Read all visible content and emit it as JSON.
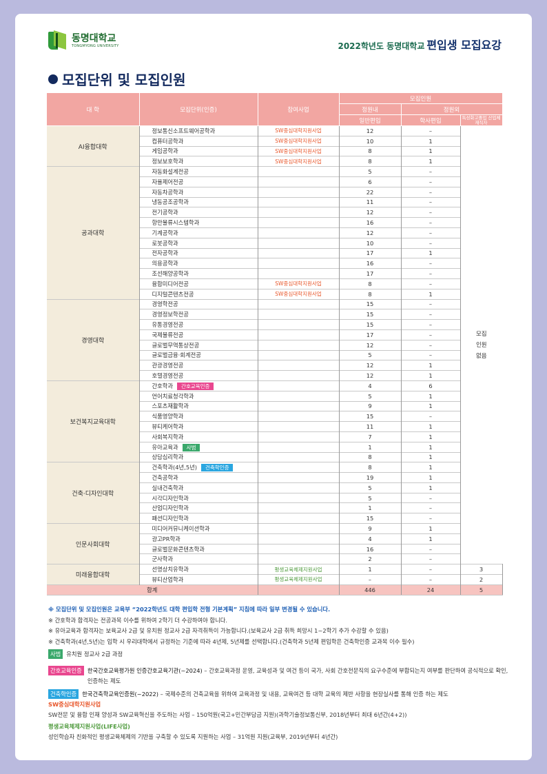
{
  "header": {
    "logo_ko": "동명대학교",
    "logo_en": "TONGMYONG UNIVERSITY",
    "doc_title_prefix": "2022학년도 동명대학교",
    "doc_title_main": "편입생 모집요강"
  },
  "section_title": "모집단위 및 모집인원",
  "colors": {
    "header_bg": "#f2a6a2",
    "college_bg": "#f3ecdc",
    "orange": "#e8562a",
    "green": "#4e9a3c",
    "badge_nursing": "#e9478f",
    "badge_teacher": "#3aa86b",
    "badge_arch": "#2aa6e0"
  },
  "table": {
    "headers": {
      "college": "대 학",
      "unit": "모집단위(인증)",
      "project": "참여사업",
      "recruit": "모집인원",
      "within": "정원내",
      "outside": "정원외",
      "general": "일반편입",
      "bachelor": "학사편입",
      "special": "특성화고졸업 산업체재직자"
    },
    "no_recruit": "모집 인원 없음",
    "colleges": [
      {
        "name": "AI융합대학",
        "programs": [
          {
            "unit": "정보통신소프트웨어공학과",
            "project": "SW중심대학지원사업",
            "general": "12",
            "bachelor": "–"
          },
          {
            "unit": "컴퓨터공학과",
            "project": "SW중심대학지원사업",
            "general": "10",
            "bachelor": "1"
          },
          {
            "unit": "게임공학과",
            "project": "SW중심대학지원사업",
            "general": "8",
            "bachelor": "1"
          },
          {
            "unit": "정보보호학과",
            "project": "SW중심대학지원사업",
            "general": "8",
            "bachelor": "1"
          }
        ]
      },
      {
        "name": "공과대학",
        "programs": [
          {
            "unit": "자동화설계전공",
            "project": "",
            "general": "5",
            "bachelor": "–"
          },
          {
            "unit": "자율제어전공",
            "project": "",
            "general": "6",
            "bachelor": "–"
          },
          {
            "unit": "자동차공학과",
            "project": "",
            "general": "22",
            "bachelor": "–"
          },
          {
            "unit": "냉동공조공학과",
            "project": "",
            "general": "11",
            "bachelor": "–"
          },
          {
            "unit": "전기공학과",
            "project": "",
            "general": "12",
            "bachelor": "–"
          },
          {
            "unit": "항만물류시스템학과",
            "project": "",
            "general": "16",
            "bachelor": "–"
          },
          {
            "unit": "기계공학과",
            "project": "",
            "general": "12",
            "bachelor": "–"
          },
          {
            "unit": "로봇공학과",
            "project": "",
            "general": "10",
            "bachelor": "–"
          },
          {
            "unit": "전자공학과",
            "project": "",
            "general": "17",
            "bachelor": "1"
          },
          {
            "unit": "의용공학과",
            "project": "",
            "general": "16",
            "bachelor": "–"
          },
          {
            "unit": "조선해양공학과",
            "project": "",
            "general": "17",
            "bachelor": "–"
          },
          {
            "unit": "융합미디어전공",
            "project": "SW중심대학지원사업",
            "general": "8",
            "bachelor": "–"
          },
          {
            "unit": "디지털콘텐츠전공",
            "project": "SW중심대학지원사업",
            "general": "8",
            "bachelor": "1"
          }
        ]
      },
      {
        "name": "경영대학",
        "programs": [
          {
            "unit": "경영학전공",
            "project": "",
            "general": "15",
            "bachelor": "–"
          },
          {
            "unit": "경영정보학전공",
            "project": "",
            "general": "15",
            "bachelor": "–"
          },
          {
            "unit": "유통경영전공",
            "project": "",
            "general": "15",
            "bachelor": "–"
          },
          {
            "unit": "국제물류전공",
            "project": "",
            "general": "17",
            "bachelor": "–"
          },
          {
            "unit": "글로벌무역통상전공",
            "project": "",
            "general": "12",
            "bachelor": "–"
          },
          {
            "unit": "글로벌금융·회계전공",
            "project": "",
            "general": "5",
            "bachelor": "–"
          },
          {
            "unit": "관광경영전공",
            "project": "",
            "general": "12",
            "bachelor": "1"
          },
          {
            "unit": "호텔경영전공",
            "project": "",
            "general": "12",
            "bachelor": "1"
          }
        ]
      },
      {
        "name": "보건복지교육대학",
        "programs": [
          {
            "unit": "간호학과",
            "badge": "간호교육인증",
            "badge_color": "#e9478f",
            "project": "",
            "general": "4",
            "bachelor": "6"
          },
          {
            "unit": "언어치료청각학과",
            "project": "",
            "general": "5",
            "bachelor": "1"
          },
          {
            "unit": "스포츠재활학과",
            "project": "",
            "general": "9",
            "bachelor": "1"
          },
          {
            "unit": "식품영양학과",
            "project": "",
            "general": "15",
            "bachelor": "–"
          },
          {
            "unit": "뷰티케어학과",
            "project": "",
            "general": "11",
            "bachelor": "1"
          },
          {
            "unit": "사회복지학과",
            "project": "",
            "general": "7",
            "bachelor": "1"
          },
          {
            "unit": "유아교육과",
            "badge": "사범",
            "badge_color": "#3aa86b",
            "project": "",
            "general": "1",
            "bachelor": "1"
          },
          {
            "unit": "상담심리학과",
            "project": "",
            "general": "8",
            "bachelor": "1"
          }
        ]
      },
      {
        "name": "건축·디자인대학",
        "programs": [
          {
            "unit": "건축학과(4년,5년)",
            "badge": "건축학인증",
            "badge_color": "#2aa6e0",
            "project": "",
            "general": "8",
            "bachelor": "1"
          },
          {
            "unit": "건축공학과",
            "project": "",
            "general": "19",
            "bachelor": "1"
          },
          {
            "unit": "실내건축학과",
            "project": "",
            "general": "5",
            "bachelor": "1"
          },
          {
            "unit": "시각디자인학과",
            "project": "",
            "general": "5",
            "bachelor": "–"
          },
          {
            "unit": "산업디자인학과",
            "project": "",
            "general": "1",
            "bachelor": "–"
          },
          {
            "unit": "패션디자인학과",
            "project": "",
            "general": "15",
            "bachelor": "–"
          }
        ]
      },
      {
        "name": "인문사회대학",
        "programs": [
          {
            "unit": "미디어커뮤니케이션학과",
            "project": "",
            "general": "9",
            "bachelor": "1"
          },
          {
            "unit": "광고PR학과",
            "project": "",
            "general": "4",
            "bachelor": "1"
          },
          {
            "unit": "글로벌문화콘텐츠학과",
            "project": "",
            "general": "16",
            "bachelor": "–"
          },
          {
            "unit": "군사학과",
            "project": "",
            "general": "2",
            "bachelor": "–"
          }
        ]
      },
      {
        "name": "미래융합대학",
        "programs": [
          {
            "unit": "선명상치유학과",
            "project": "평생교육체제지원사업",
            "general": "1",
            "bachelor": "–",
            "special": "3"
          },
          {
            "unit": "뷰티산업학과",
            "project": "평생교육체제지원사업",
            "general": "–",
            "bachelor": "–",
            "special": "2"
          }
        ]
      }
    ],
    "total": {
      "label": "합계",
      "general": "446",
      "bachelor": "24",
      "special": "5"
    }
  },
  "notes": [
    "※ 모집단위 및 모집인원은 교육부 “2022학년도 대학 편입학 전형 기본계획” 지침에 따라 일부 변경될 수 있습니다.",
    "※ 간호학과 합격자는 전공과목 이수를 위하여 2학기 더 수강하여야 합니다.",
    "※ 유아교육과 합격자는 보육교사 2급 및 유치원 정교사 2급 자격취득이 가능합니다.(보육교사 2급 취득 희망시 1~2학기 추가 수강할 수 있음)",
    "※ 건축학과(4년,5년)는 입학 시 우리대학에서 규정하는 기준에 따라 4년제, 5년제를 선택합니다.(건축학과 5년제 편입학은 건축학인증 교과목 이수 필수)"
  ],
  "legend": {
    "teacher": {
      "tag": "사범",
      "text": "유치원 정교사 2급 과정"
    },
    "nursing": {
      "tag": "간호교육인증",
      "title": "한국간호교육평가원 인증간호교육기관(~2024)",
      "text": " – 간호교육과정 운영, 교육성과 및 여건 등이 국가, 사회 간호전문직의 요구수준에 부합되는지 여부를 판단하여 공식적으로 확인, 인증하는 제도"
    },
    "arch": {
      "tag": "건축학인증",
      "title": "한국건축학교육인증원(~2022)",
      "text": " – 국제수준의 건축교육을 위하여 교육과정 및 내용, 교육여건 등 대학 교육의 제반 사항을 현장실사를 통해 인증 하는 제도"
    },
    "sw": {
      "title": "SW중심대학지원사업",
      "text": "SW전문 및 융합 인재 양성과 SW교육혁신을 주도하는 사업 – 150억원(국고+민간부담금 지원)(과학기술정보통신부, 2018년부터 최대 6년간(4+2))"
    },
    "life": {
      "title": "평생교육체제지원사업(LIFE사업)",
      "text": "성인학습자 친화적인 평생교육체제의 기반을 구축할 수 있도록 지원하는 사업 – 31억원 지원(교육부, 2019년부터 4년간)"
    }
  }
}
